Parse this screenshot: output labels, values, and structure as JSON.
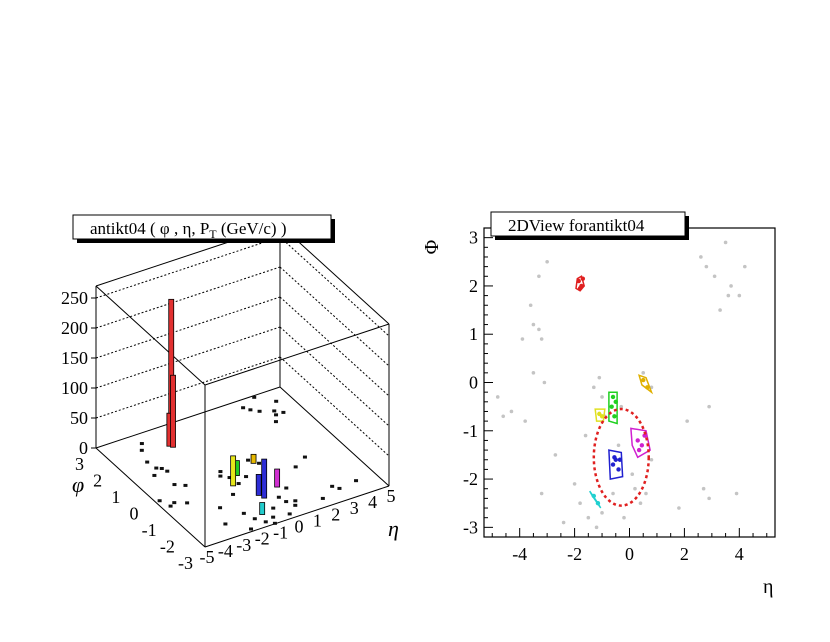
{
  "chart_data": [
    {
      "type": "lego-3d-histogram",
      "title": "antikt04 ( φ , η, P",
      "title_sub": "T",
      "title_tail": " (GeV/c) )",
      "xlabel": "η",
      "ylabel": "φ",
      "zlim": [
        0,
        270
      ],
      "xlim": [
        -5,
        5
      ],
      "ylim": [
        -3,
        3
      ],
      "z_ticks": [
        "0",
        "50",
        "100",
        "150",
        "200",
        "250"
      ],
      "z_tick_values": [
        0,
        50,
        100,
        150,
        200,
        250
      ],
      "eta_ticks": [
        "-5",
        "-4",
        "-3",
        "-2",
        "-1",
        "0",
        "1",
        "2",
        "3",
        "4",
        "5"
      ],
      "phi_ticks": [
        "-3",
        "-2",
        "-1",
        "0",
        "1",
        "2",
        "3"
      ],
      "towers": [
        {
          "eta": -1.8,
          "phi": 2.1,
          "pt": 240,
          "color": "#e23030"
        },
        {
          "eta": -1.9,
          "phi": 1.9,
          "pt": 120,
          "color": "#e23030"
        },
        {
          "eta": -2.0,
          "phi": 2.0,
          "pt": 55,
          "color": "#e23030"
        },
        {
          "eta": -0.5,
          "phi": -1.7,
          "pt": 65,
          "color": "#2d2dd6"
        },
        {
          "eta": -0.6,
          "phi": -1.5,
          "pt": 35,
          "color": "#2d2dd6"
        },
        {
          "eta": -1.2,
          "phi": -0.7,
          "pt": 50,
          "color": "#e6e61a"
        },
        {
          "eta": -0.6,
          "phi": -0.3,
          "pt": 25,
          "color": "#22cc22"
        },
        {
          "eta": 0.5,
          "phi": -1.4,
          "pt": 30,
          "color": "#d030d0"
        },
        {
          "eta": 0.6,
          "phi": 0.0,
          "pt": 15,
          "color": "#e6b800"
        },
        {
          "eta": -1.3,
          "phi": -2.4,
          "pt": 20,
          "color": "#22cccc"
        }
      ],
      "grid": true
    },
    {
      "type": "scatter",
      "title": "2DView forantikt04",
      "xlabel": "η",
      "ylabel": "Φ",
      "xlim": [
        -5.3,
        5.3
      ],
      "ylim": [
        -3.2,
        3.2
      ],
      "x_ticks": [
        "-4",
        "-2",
        "0",
        "2",
        "4"
      ],
      "x_tick_values": [
        -4,
        -2,
        0,
        2,
        4
      ],
      "y_ticks": [
        "-3",
        "-2",
        "-1",
        "0",
        "1",
        "2",
        "3"
      ],
      "y_tick_values": [
        -3,
        -2,
        -1,
        0,
        1,
        2,
        3
      ],
      "background_points": [
        [
          -4.8,
          -0.3
        ],
        [
          -4.6,
          -0.7
        ],
        [
          -4.3,
          -0.6
        ],
        [
          -3.9,
          0.9
        ],
        [
          -3.6,
          1.6
        ],
        [
          -3.5,
          1.2
        ],
        [
          -3.3,
          1.1
        ],
        [
          -3.2,
          0.9
        ],
        [
          -3.5,
          0.2
        ],
        [
          -3.1,
          0.0
        ],
        [
          -3.3,
          2.2
        ],
        [
          -3.0,
          2.5
        ],
        [
          -3.2,
          -2.3
        ],
        [
          -3.8,
          -0.8
        ],
        [
          -2.7,
          -1.5
        ],
        [
          -2.0,
          -2.1
        ],
        [
          -1.8,
          -2.5
        ],
        [
          -1.5,
          -2.8
        ],
        [
          -1.2,
          -3.0
        ],
        [
          -1.0,
          -2.7
        ],
        [
          -1.6,
          -1.1
        ],
        [
          -1.3,
          -0.1
        ],
        [
          -1.1,
          0.1
        ],
        [
          -1.0,
          -0.3
        ],
        [
          -0.9,
          -0.7
        ],
        [
          -0.3,
          -0.5
        ],
        [
          -0.6,
          -2.3
        ],
        [
          -0.2,
          -2.8
        ],
        [
          0.2,
          -2.2
        ],
        [
          0.4,
          -2.5
        ],
        [
          0.6,
          -2.3
        ],
        [
          0.8,
          -1.6
        ],
        [
          0.5,
          0.2
        ],
        [
          0.8,
          -0.1
        ],
        [
          2.1,
          -0.8
        ],
        [
          2.9,
          -0.5
        ],
        [
          2.7,
          -2.2
        ],
        [
          2.9,
          -2.4
        ],
        [
          2.6,
          2.6
        ],
        [
          2.8,
          2.4
        ],
        [
          3.1,
          2.2
        ],
        [
          3.3,
          1.5
        ],
        [
          3.6,
          1.8
        ],
        [
          3.7,
          2.0
        ],
        [
          3.5,
          2.9
        ],
        [
          3.9,
          -2.3
        ],
        [
          4.0,
          1.8
        ],
        [
          4.2,
          2.4
        ],
        [
          1.8,
          -2.6
        ],
        [
          -0.4,
          -1.3
        ],
        [
          0.1,
          -1.9
        ],
        [
          -2.4,
          -2.9
        ]
      ],
      "jets": [
        {
          "color": "#e02020",
          "hull": [
            [
              -1.9,
              2.15
            ],
            [
              -1.75,
              2.2
            ],
            [
              -1.65,
              2.0
            ],
            [
              -1.8,
              1.9
            ],
            [
              -1.95,
              1.95
            ]
          ],
          "points": [
            [
              -1.85,
              2.1
            ],
            [
              -1.75,
              2.0
            ],
            [
              -1.8,
              1.95
            ],
            [
              -1.7,
              2.15
            ]
          ]
        },
        {
          "color": "#2020d0",
          "hull": [
            [
              -0.75,
              -1.4
            ],
            [
              -0.3,
              -1.45
            ],
            [
              -0.25,
              -1.95
            ],
            [
              -0.7,
              -2.0
            ]
          ],
          "points": [
            [
              -0.5,
              -1.6
            ],
            [
              -0.6,
              -1.7
            ],
            [
              -0.4,
              -1.8
            ],
            [
              -0.55,
              -1.55
            ],
            [
              -0.35,
              -1.6
            ]
          ]
        },
        {
          "color": "#20d020",
          "hull": [
            [
              -0.75,
              -0.2
            ],
            [
              -0.45,
              -0.2
            ],
            [
              -0.45,
              -0.85
            ],
            [
              -0.75,
              -0.8
            ]
          ],
          "points": [
            [
              -0.6,
              -0.3
            ],
            [
              -0.65,
              -0.5
            ],
            [
              -0.55,
              -0.7
            ],
            [
              -0.5,
              -0.4
            ]
          ]
        },
        {
          "color": "#e0e020",
          "hull": [
            [
              -1.25,
              -0.55
            ],
            [
              -0.9,
              -0.55
            ],
            [
              -0.95,
              -0.8
            ],
            [
              -1.2,
              -0.8
            ]
          ],
          "points": [
            [
              -1.1,
              -0.65
            ],
            [
              -1.0,
              -0.7
            ]
          ]
        },
        {
          "color": "#d020d0",
          "hull": [
            [
              0.05,
              -0.95
            ],
            [
              0.6,
              -1.0
            ],
            [
              0.75,
              -1.4
            ],
            [
              0.3,
              -1.55
            ],
            [
              0.1,
              -1.3
            ]
          ],
          "points": [
            [
              0.3,
              -1.2
            ],
            [
              0.45,
              -1.3
            ],
            [
              0.55,
              -1.1
            ],
            [
              0.35,
              -1.4
            ]
          ]
        },
        {
          "color": "#e0b000",
          "hull": [
            [
              0.35,
              0.15
            ],
            [
              0.6,
              0.1
            ],
            [
              0.8,
              -0.2
            ],
            [
              0.45,
              -0.05
            ]
          ],
          "points": [
            [
              0.5,
              0.05
            ],
            [
              0.65,
              -0.1
            ]
          ]
        },
        {
          "color": "#20d0d0",
          "hull": [
            [
              -1.45,
              -2.25
            ],
            [
              -1.15,
              -2.5
            ],
            [
              -1.05,
              -2.6
            ],
            [
              -1.35,
              -2.35
            ]
          ],
          "points": [
            [
              -1.3,
              -2.35
            ],
            [
              -1.15,
              -2.5
            ]
          ]
        }
      ],
      "highlight_ellipse": {
        "cx": -0.3,
        "cy": -1.55,
        "rx": 1.0,
        "ry": 1.0,
        "color": "#e02020"
      },
      "grid": false
    }
  ]
}
